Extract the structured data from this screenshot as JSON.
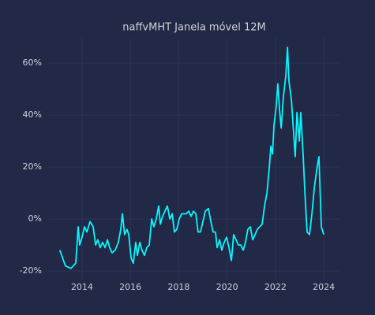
{
  "chart_data": {
    "type": "line",
    "title": "naffvMHT Janela móvel 12M",
    "x": [
      2013.08,
      2013.31,
      2013.54,
      2013.74,
      2013.84,
      2013.9,
      2014.0,
      2014.1,
      2014.2,
      2014.33,
      2014.46,
      2014.56,
      2014.65,
      2014.75,
      2014.85,
      2014.95,
      2015.05,
      2015.14,
      2015.24,
      2015.37,
      2015.5,
      2015.6,
      2015.67,
      2015.76,
      2015.86,
      2015.93,
      2016.03,
      2016.12,
      2016.22,
      2016.29,
      2016.39,
      2016.48,
      2016.58,
      2016.68,
      2016.78,
      2016.88,
      2016.97,
      2017.07,
      2017.17,
      2017.24,
      2017.33,
      2017.43,
      2017.53,
      2017.63,
      2017.73,
      2017.82,
      2017.92,
      2018.02,
      2018.12,
      2018.22,
      2018.31,
      2018.41,
      2018.51,
      2018.61,
      2018.71,
      2018.8,
      2018.9,
      2019.0,
      2019.1,
      2019.23,
      2019.33,
      2019.42,
      2019.52,
      2019.59,
      2019.69,
      2019.78,
      2019.88,
      2019.98,
      2020.08,
      2020.18,
      2020.27,
      2020.37,
      2020.47,
      2020.57,
      2020.67,
      2020.76,
      2020.86,
      2020.96,
      2021.06,
      2021.16,
      2021.25,
      2021.35,
      2021.45,
      2021.55,
      2021.65,
      2021.75,
      2021.81,
      2021.88,
      2021.94,
      2022.04,
      2022.1,
      2022.17,
      2022.24,
      2022.33,
      2022.43,
      2022.5,
      2022.56,
      2022.66,
      2022.76,
      2022.82,
      2022.89,
      2022.99,
      2023.05,
      2023.15,
      2023.22,
      2023.31,
      2023.41,
      2023.51,
      2023.61,
      2023.71,
      2023.8,
      2023.9,
      2024.0
    ],
    "series": [
      {
        "name": "naffvMHT",
        "color": "#08f7fe",
        "values": [
          -12,
          -18,
          -19,
          -17,
          -3,
          -10,
          -7,
          -3,
          -5,
          -1,
          -3,
          -10,
          -8,
          -11,
          -9,
          -11,
          -8,
          -11,
          -13,
          -12,
          -9,
          -4,
          2,
          -6,
          -4,
          -6,
          -15,
          -17,
          -9,
          -14,
          -9,
          -12,
          -14,
          -11,
          -10,
          0,
          -3,
          0,
          5,
          -2,
          1,
          3,
          5,
          0,
          2,
          -5,
          -4,
          0,
          2,
          2,
          2,
          3,
          1,
          3,
          2,
          -5,
          -5,
          -1,
          3,
          4,
          -1,
          -5,
          -5,
          -11,
          -8,
          -12,
          -9,
          -7,
          -11,
          -16,
          -6,
          -8,
          -10,
          -10,
          -12,
          -9,
          -4,
          -3,
          -8,
          -6,
          -4,
          -3,
          -2,
          5,
          10,
          20,
          28,
          25,
          36,
          44,
          52,
          42,
          35,
          47,
          55,
          66,
          53,
          46,
          32,
          24,
          41,
          30,
          41,
          24,
          10,
          -5,
          -6,
          2,
          12,
          19,
          24,
          -3,
          -6
        ]
      }
    ],
    "xlim": [
      2012.63,
      2024.65
    ],
    "xticks": [
      2014,
      2016,
      2018,
      2020,
      2022,
      2024
    ],
    "ylim": [
      -23.3,
      69.7
    ],
    "yticks": [
      {
        "value": -20,
        "label": "-20%"
      },
      {
        "value": 0,
        "label": "0%"
      },
      {
        "value": 20,
        "label": "20%"
      },
      {
        "value": 40,
        "label": "40%"
      },
      {
        "value": 60,
        "label": "60%"
      }
    ],
    "grid": true
  }
}
